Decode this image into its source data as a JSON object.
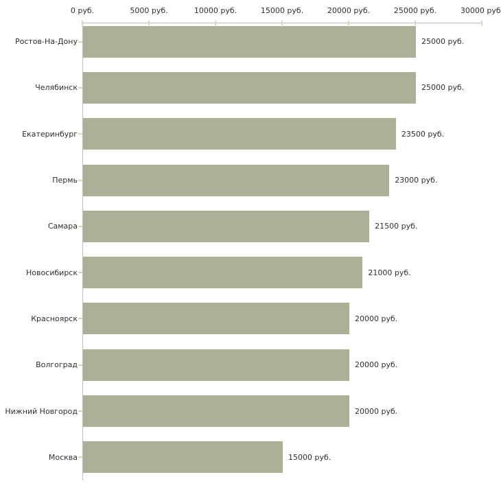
{
  "chart_data": {
    "type": "bar",
    "orientation": "horizontal",
    "title": "",
    "xlabel": "",
    "ylabel": "",
    "unit": "руб.",
    "xlim": [
      0,
      30000
    ],
    "grid": false,
    "legend": null,
    "x_ticks": [
      {
        "value": 0,
        "label": "0 руб."
      },
      {
        "value": 5000,
        "label": "5000 руб."
      },
      {
        "value": 10000,
        "label": "10000 руб."
      },
      {
        "value": 15000,
        "label": "15000 руб."
      },
      {
        "value": 20000,
        "label": "20000 руб."
      },
      {
        "value": 25000,
        "label": "25000 руб."
      },
      {
        "value": 30000,
        "label": "30000 руб."
      }
    ],
    "categories": [
      "Ростов-На-Дону",
      "Челябинск",
      "Екатеринбург",
      "Пермь",
      "Самара",
      "Новосибирск",
      "Красноярск",
      "Волгоград",
      "Нижний Новгород",
      "Москва"
    ],
    "values": [
      25000,
      25000,
      23500,
      23000,
      21500,
      21000,
      20000,
      20000,
      20000,
      15000
    ],
    "bar_labels": [
      "25000 руб.",
      "25000 руб.",
      "23500 руб.",
      "23000 руб.",
      "21500 руб.",
      "21000 руб.",
      "20000 руб.",
      "20000 руб.",
      "20000 руб.",
      "15000 руб."
    ],
    "colors": {
      "bar": "#abb197",
      "axis_line": "#bcbcbc",
      "tick": "#d6d8ba",
      "text": "#2e2e2e",
      "background": "#ffffff"
    }
  }
}
